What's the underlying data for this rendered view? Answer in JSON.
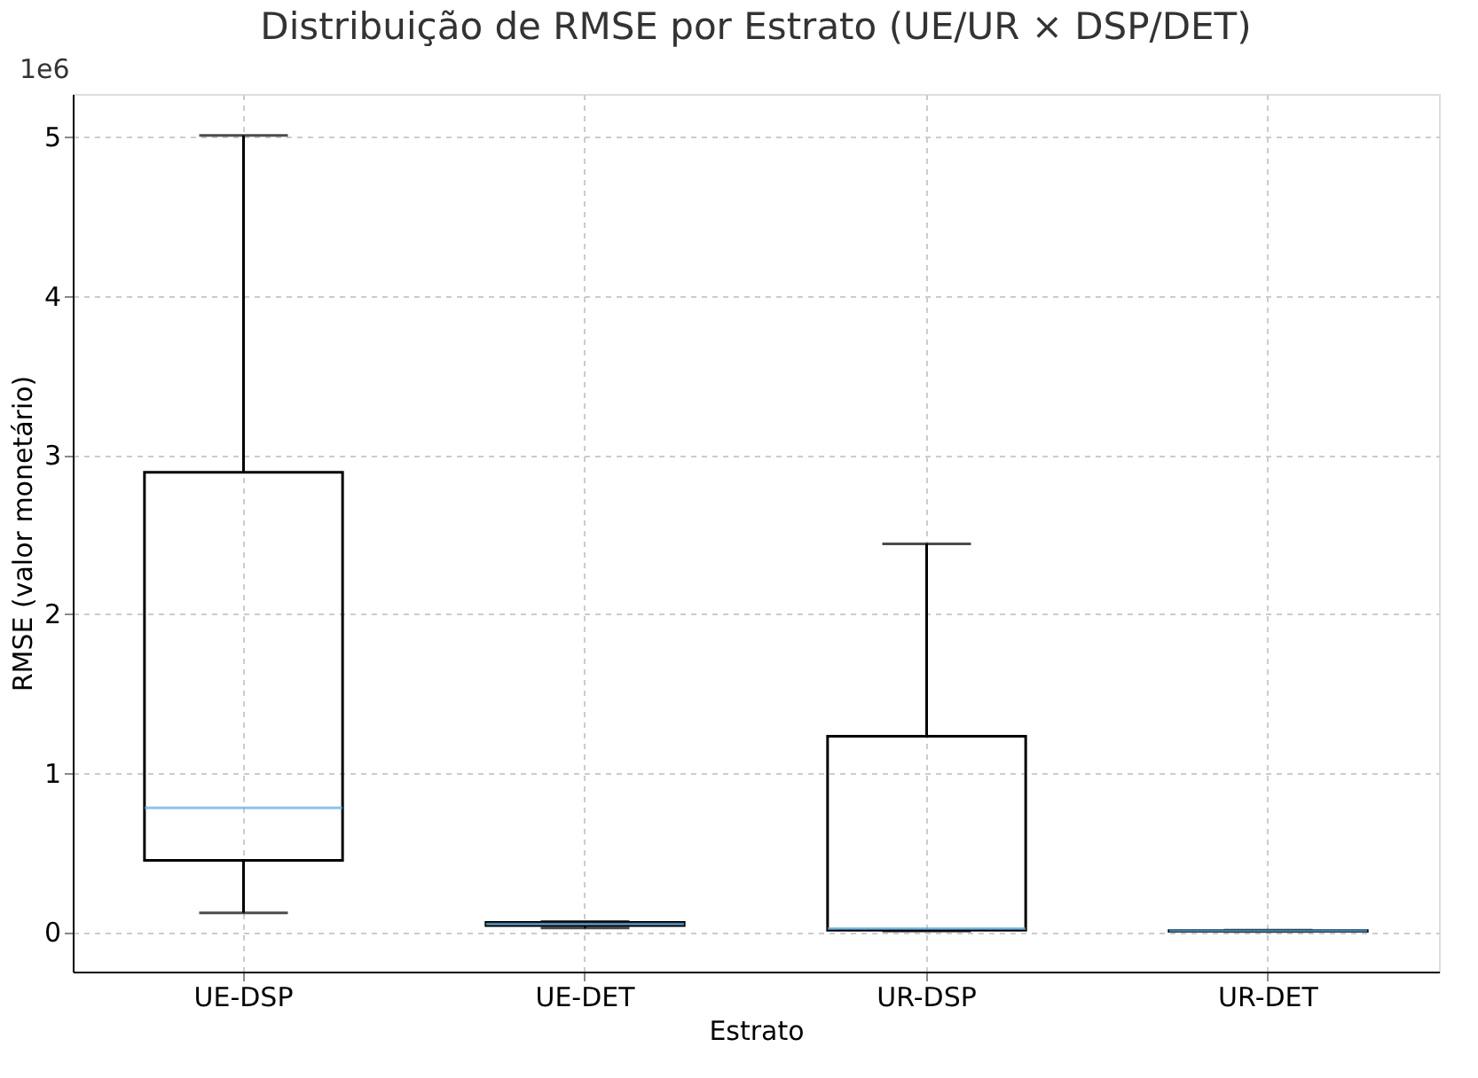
{
  "chart_data": {
    "type": "box",
    "title": "Distribuição de RMSE por Estrato (UE/UR × DSP/DET)",
    "xlabel": "Estrato",
    "ylabel": "RMSE (valor monetário)",
    "categories": [
      "UE-DSP",
      "UE-DET",
      "UR-DSP",
      "UR-DET"
    ],
    "series": [
      {
        "color": "#5dade2",
        "boxes": [
          {
            "low": 0.12,
            "q1": 0.45,
            "median": 0.78,
            "q3": 2.89,
            "high": 5.01
          },
          {
            "low": 0.025,
            "q1": 0.04,
            "median": 0.05,
            "q3": 0.06,
            "high": 0.065
          },
          {
            "low": 0.005,
            "q1": 0.01,
            "median": 0.02,
            "q3": 1.23,
            "high": 2.44
          },
          {
            "low": 0.002,
            "q1": 0.004,
            "median": 0.006,
            "q3": 0.008,
            "high": 0.01
          }
        ]
      }
    ],
    "ylim": [
      -0.25,
      5.27
    ],
    "yticks": [
      0,
      1,
      2,
      3,
      4,
      5
    ],
    "annotations": [
      "1e6"
    ],
    "grid": true
  }
}
